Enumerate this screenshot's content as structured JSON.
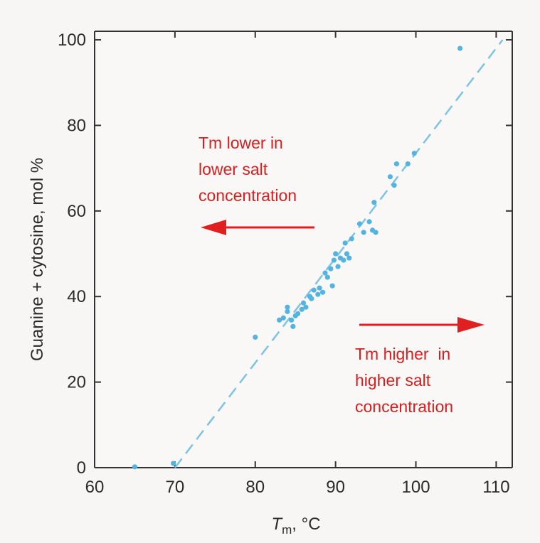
{
  "chart_data": {
    "type": "scatter",
    "xlabel_main": "T",
    "xlabel_sub": "m",
    "xlabel_unit": ", °C",
    "ylabel": "Guanine + cytosine, mol %",
    "xlim": [
      60,
      112
    ],
    "ylim": [
      0,
      102
    ],
    "xticks": [
      60,
      70,
      80,
      90,
      100,
      110
    ],
    "yticks": [
      0,
      20,
      40,
      60,
      80,
      100
    ],
    "grid": false,
    "colors": {
      "points": "#55b3e0",
      "fit_line": "#7cc3e6",
      "annotation": "#d81e1e",
      "axes": "#333333"
    },
    "points": [
      [
        65.0,
        0.2
      ],
      [
        69.8,
        1.0
      ],
      [
        80.0,
        30.5
      ],
      [
        83.0,
        34.5
      ],
      [
        83.5,
        35.0
      ],
      [
        84.0,
        36.5
      ],
      [
        84.0,
        37.5
      ],
      [
        84.5,
        34.5
      ],
      [
        84.7,
        33.0
      ],
      [
        85.0,
        35.5
      ],
      [
        85.3,
        36.0
      ],
      [
        85.8,
        37.0
      ],
      [
        86.0,
        38.5
      ],
      [
        86.3,
        37.5
      ],
      [
        86.8,
        40.0
      ],
      [
        87.0,
        39.5
      ],
      [
        87.3,
        41.5
      ],
      [
        87.8,
        40.5
      ],
      [
        88.0,
        42.0
      ],
      [
        88.4,
        41.0
      ],
      [
        88.7,
        45.5
      ],
      [
        89.0,
        44.5
      ],
      [
        89.4,
        46.5
      ],
      [
        89.6,
        42.5
      ],
      [
        89.8,
        48.5
      ],
      [
        90.0,
        50.0
      ],
      [
        90.3,
        47.0
      ],
      [
        90.6,
        49.0
      ],
      [
        91.0,
        48.5
      ],
      [
        91.2,
        52.5
      ],
      [
        91.4,
        50.0
      ],
      [
        91.7,
        49.0
      ],
      [
        92.0,
        53.5
      ],
      [
        93.0,
        57.0
      ],
      [
        93.5,
        55.0
      ],
      [
        94.2,
        57.5
      ],
      [
        94.6,
        55.5
      ],
      [
        95.0,
        55.0
      ],
      [
        94.8,
        62.0
      ],
      [
        96.8,
        68.0
      ],
      [
        97.3,
        66.0
      ],
      [
        97.6,
        71.0
      ],
      [
        99.0,
        71.0
      ],
      [
        99.8,
        73.5
      ],
      [
        105.5,
        98.0
      ]
    ],
    "fit_line": {
      "x": [
        70.0,
        110.8
      ],
      "y": [
        0,
        100
      ]
    },
    "annotations": [
      {
        "lines": [
          "Tm lower in",
          "lower salt",
          "concentration"
        ],
        "arrow_direction": "left"
      },
      {
        "lines": [
          "Tm higher  in",
          "higher salt",
          "concentration"
        ],
        "arrow_direction": "right"
      }
    ]
  }
}
